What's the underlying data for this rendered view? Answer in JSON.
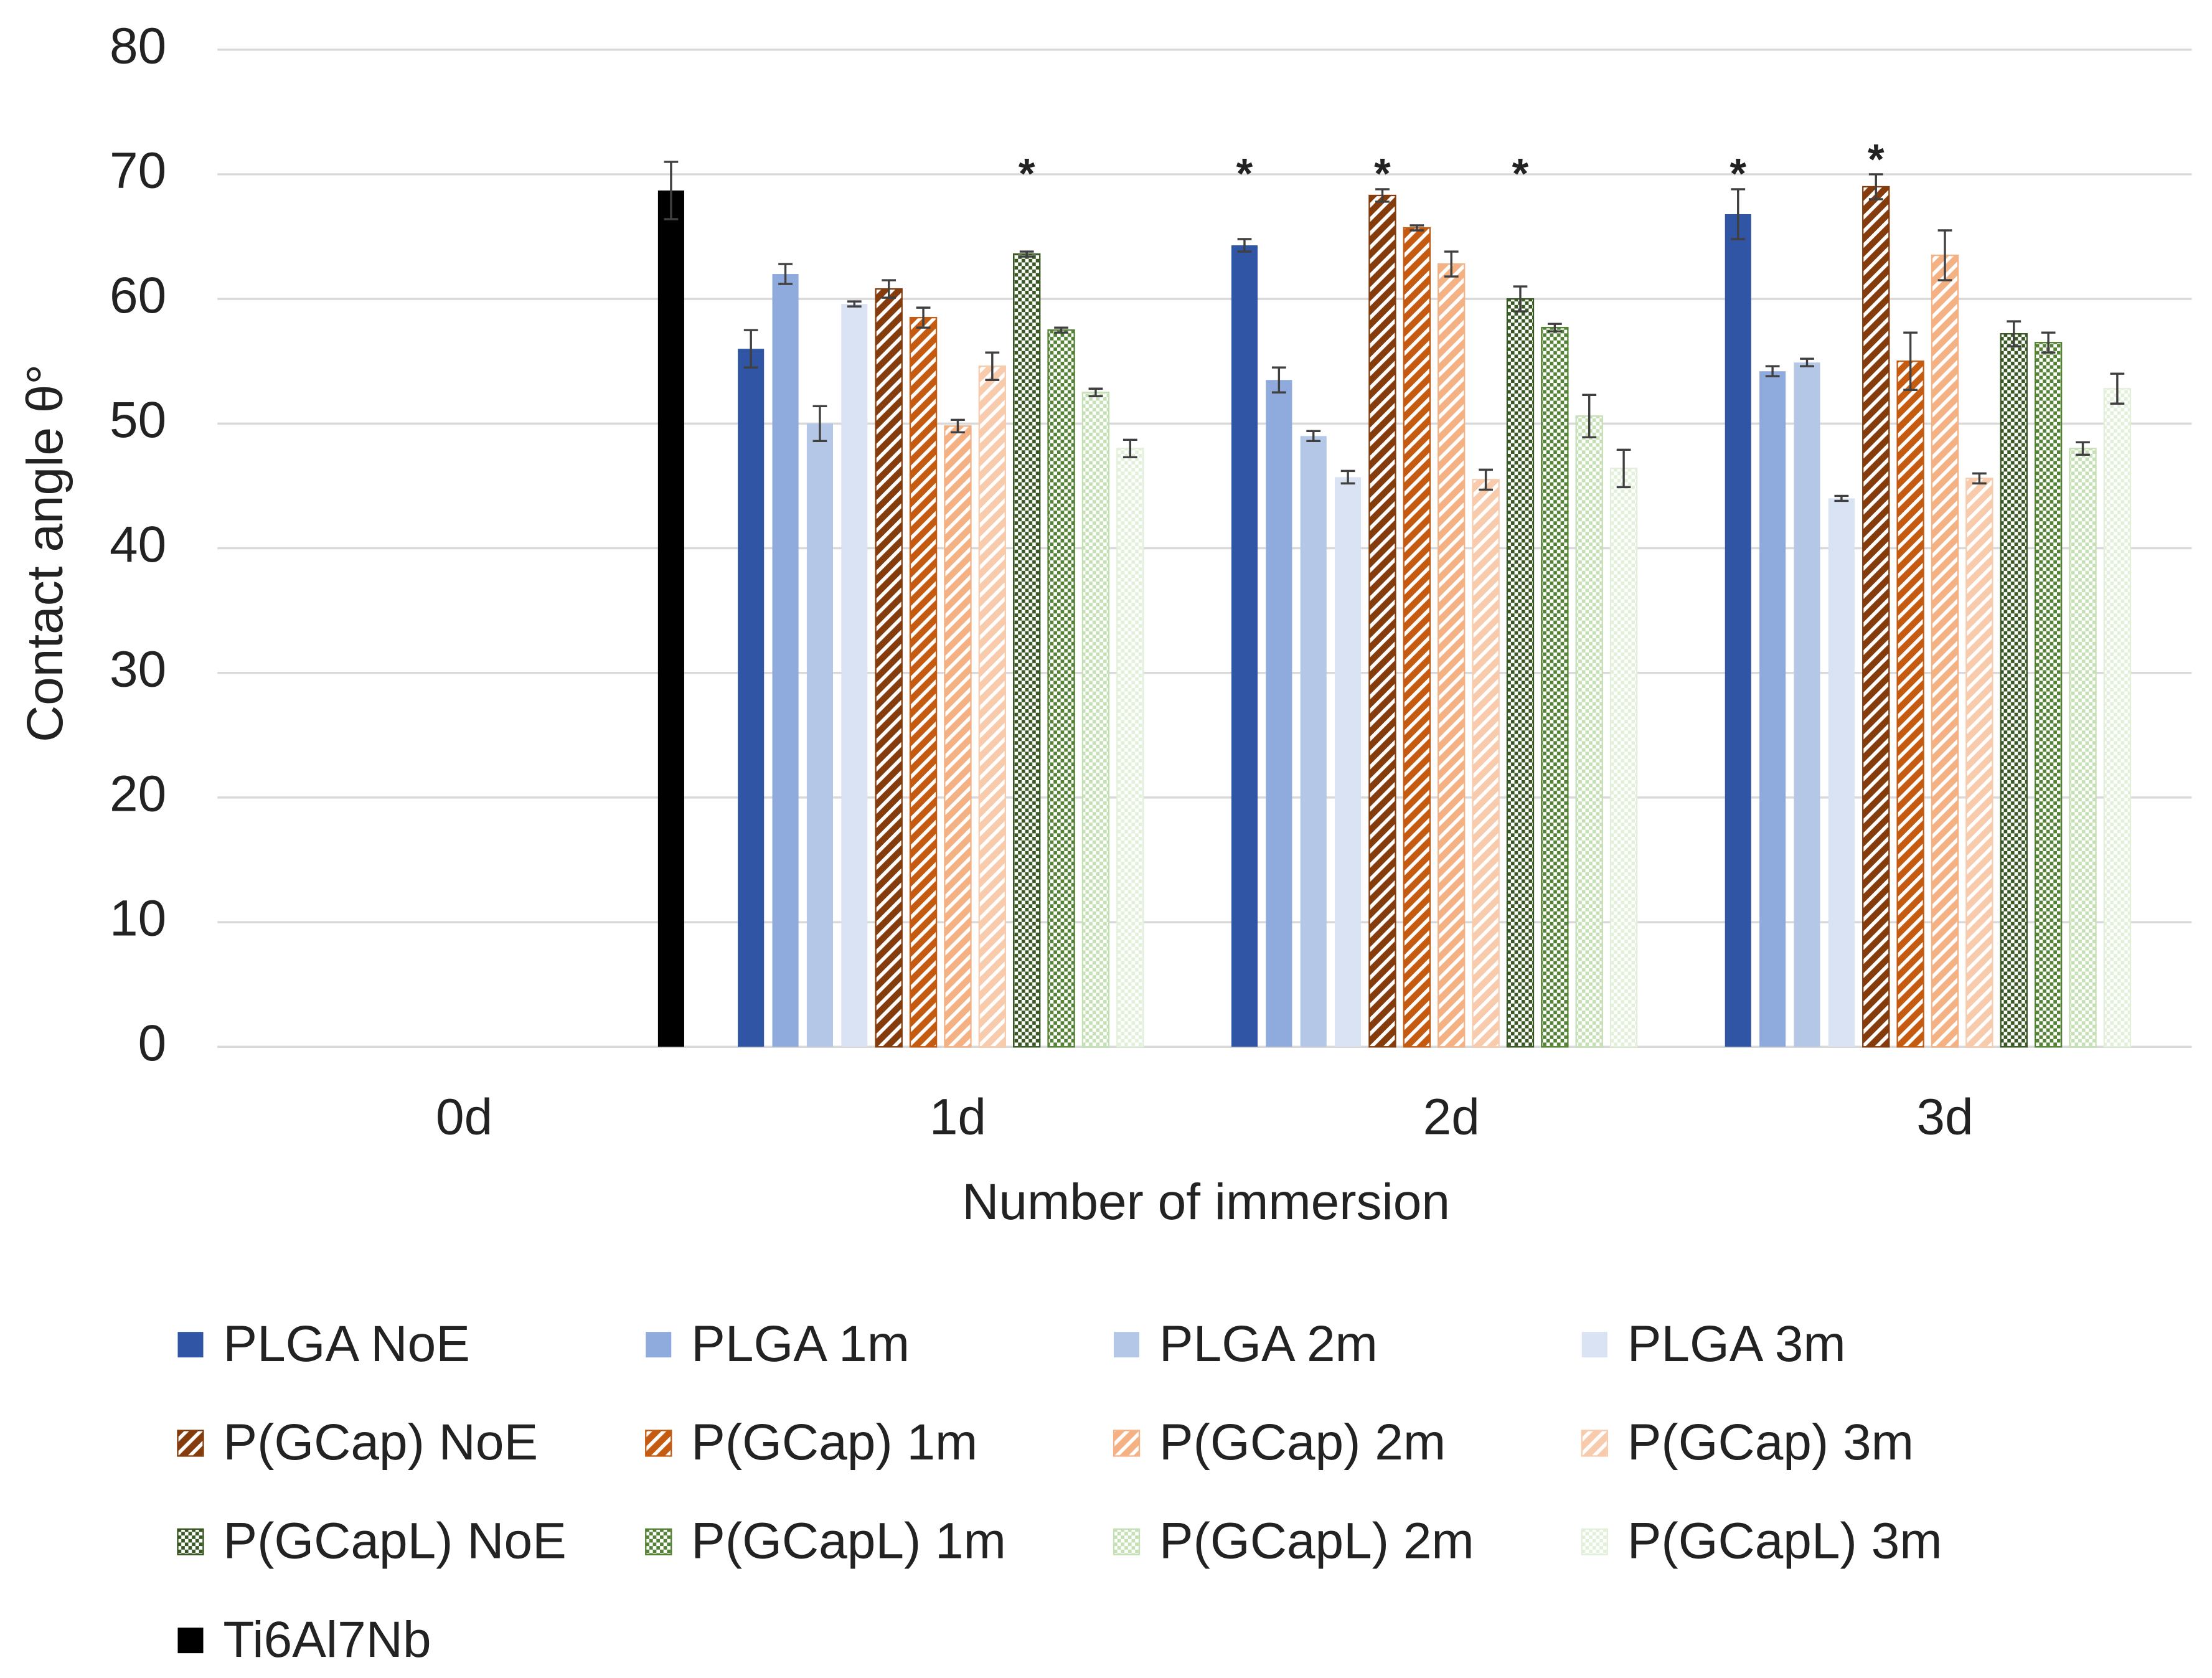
{
  "chart_data": {
    "type": "bar",
    "y_label": "Contact angle θ°",
    "x_label": "Number of immersion",
    "categories": [
      "0d",
      "1d",
      "2d",
      "3d"
    ],
    "ylim": [
      0,
      80
    ],
    "yticks": [
      0,
      10,
      20,
      30,
      40,
      50,
      60,
      70,
      80
    ],
    "grid": true,
    "legend": "bottom",
    "series": [
      {
        "name": "PLGA NoE",
        "color": "#2f55a4",
        "pattern": "solid",
        "values": [
          null,
          56,
          64.3,
          66.8
        ],
        "errors": [
          null,
          1.5,
          0.5,
          2
        ],
        "annotations": [
          null,
          null,
          "*",
          "*"
        ]
      },
      {
        "name": "PLGA 1m",
        "color": "#8faadc",
        "pattern": "solid",
        "values": [
          null,
          62,
          53.5,
          54.2
        ],
        "errors": [
          null,
          0.8,
          1,
          0.4
        ]
      },
      {
        "name": "PLGA 2m",
        "color": "#b4c7e7",
        "pattern": "solid",
        "values": [
          null,
          50,
          49,
          54.9
        ],
        "errors": [
          null,
          1.4,
          0.4,
          0.3
        ]
      },
      {
        "name": "PLGA 3m",
        "color": "#dae3f3",
        "pattern": "solid",
        "values": [
          null,
          59.6,
          45.7,
          44
        ],
        "errors": [
          null,
          0.2,
          0.5,
          0.2
        ]
      },
      {
        "name": "P(GCap) NoE",
        "color": "#843c0c",
        "pattern": "stripes",
        "values": [
          null,
          60.8,
          68.3,
          69
        ],
        "errors": [
          null,
          0.7,
          0.5,
          1
        ],
        "annotations": [
          null,
          null,
          "*",
          "*"
        ]
      },
      {
        "name": "P(GCap) 1m",
        "color": "#c55a11",
        "pattern": "stripes",
        "values": [
          null,
          58.5,
          65.7,
          55
        ],
        "errors": [
          null,
          0.8,
          0.2,
          2.3
        ]
      },
      {
        "name": "P(GCap) 2m",
        "color": "#f4b183",
        "pattern": "stripes",
        "values": [
          null,
          49.8,
          62.8,
          63.5
        ],
        "errors": [
          null,
          0.5,
          1,
          2
        ]
      },
      {
        "name": "P(GCap) 3m",
        "color": "#f8cbad",
        "pattern": "stripes",
        "values": [
          null,
          54.6,
          45.5,
          45.6
        ],
        "errors": [
          null,
          1.1,
          0.8,
          0.4
        ]
      },
      {
        "name": "P(GCapL) NoE",
        "color": "#385723",
        "pattern": "checker",
        "values": [
          null,
          63.6,
          60,
          57.2
        ],
        "errors": [
          null,
          0.2,
          1,
          1
        ],
        "annotations": [
          null,
          "*",
          "*",
          null
        ]
      },
      {
        "name": "P(GCapL) 1m",
        "color": "#548235",
        "pattern": "checker",
        "values": [
          null,
          57.5,
          57.7,
          56.5
        ],
        "errors": [
          null,
          0.2,
          0.3,
          0.8
        ]
      },
      {
        "name": "P(GCapL) 2m",
        "color": "#c5e0b4",
        "pattern": "checker",
        "values": [
          null,
          52.5,
          50.6,
          48
        ],
        "errors": [
          null,
          0.3,
          1.7,
          0.5
        ]
      },
      {
        "name": "P(GCapL) 3m",
        "color": "#e2f0d9",
        "pattern": "checker",
        "values": [
          null,
          48,
          46.4,
          52.8
        ],
        "errors": [
          null,
          0.7,
          1.5,
          1.2
        ]
      },
      {
        "name": "Ti6Al7Nb",
        "color": "#000000",
        "pattern": "solid",
        "values": [
          68.7,
          null,
          null,
          null
        ],
        "errors": [
          2.3,
          null,
          null,
          null
        ]
      }
    ]
  }
}
